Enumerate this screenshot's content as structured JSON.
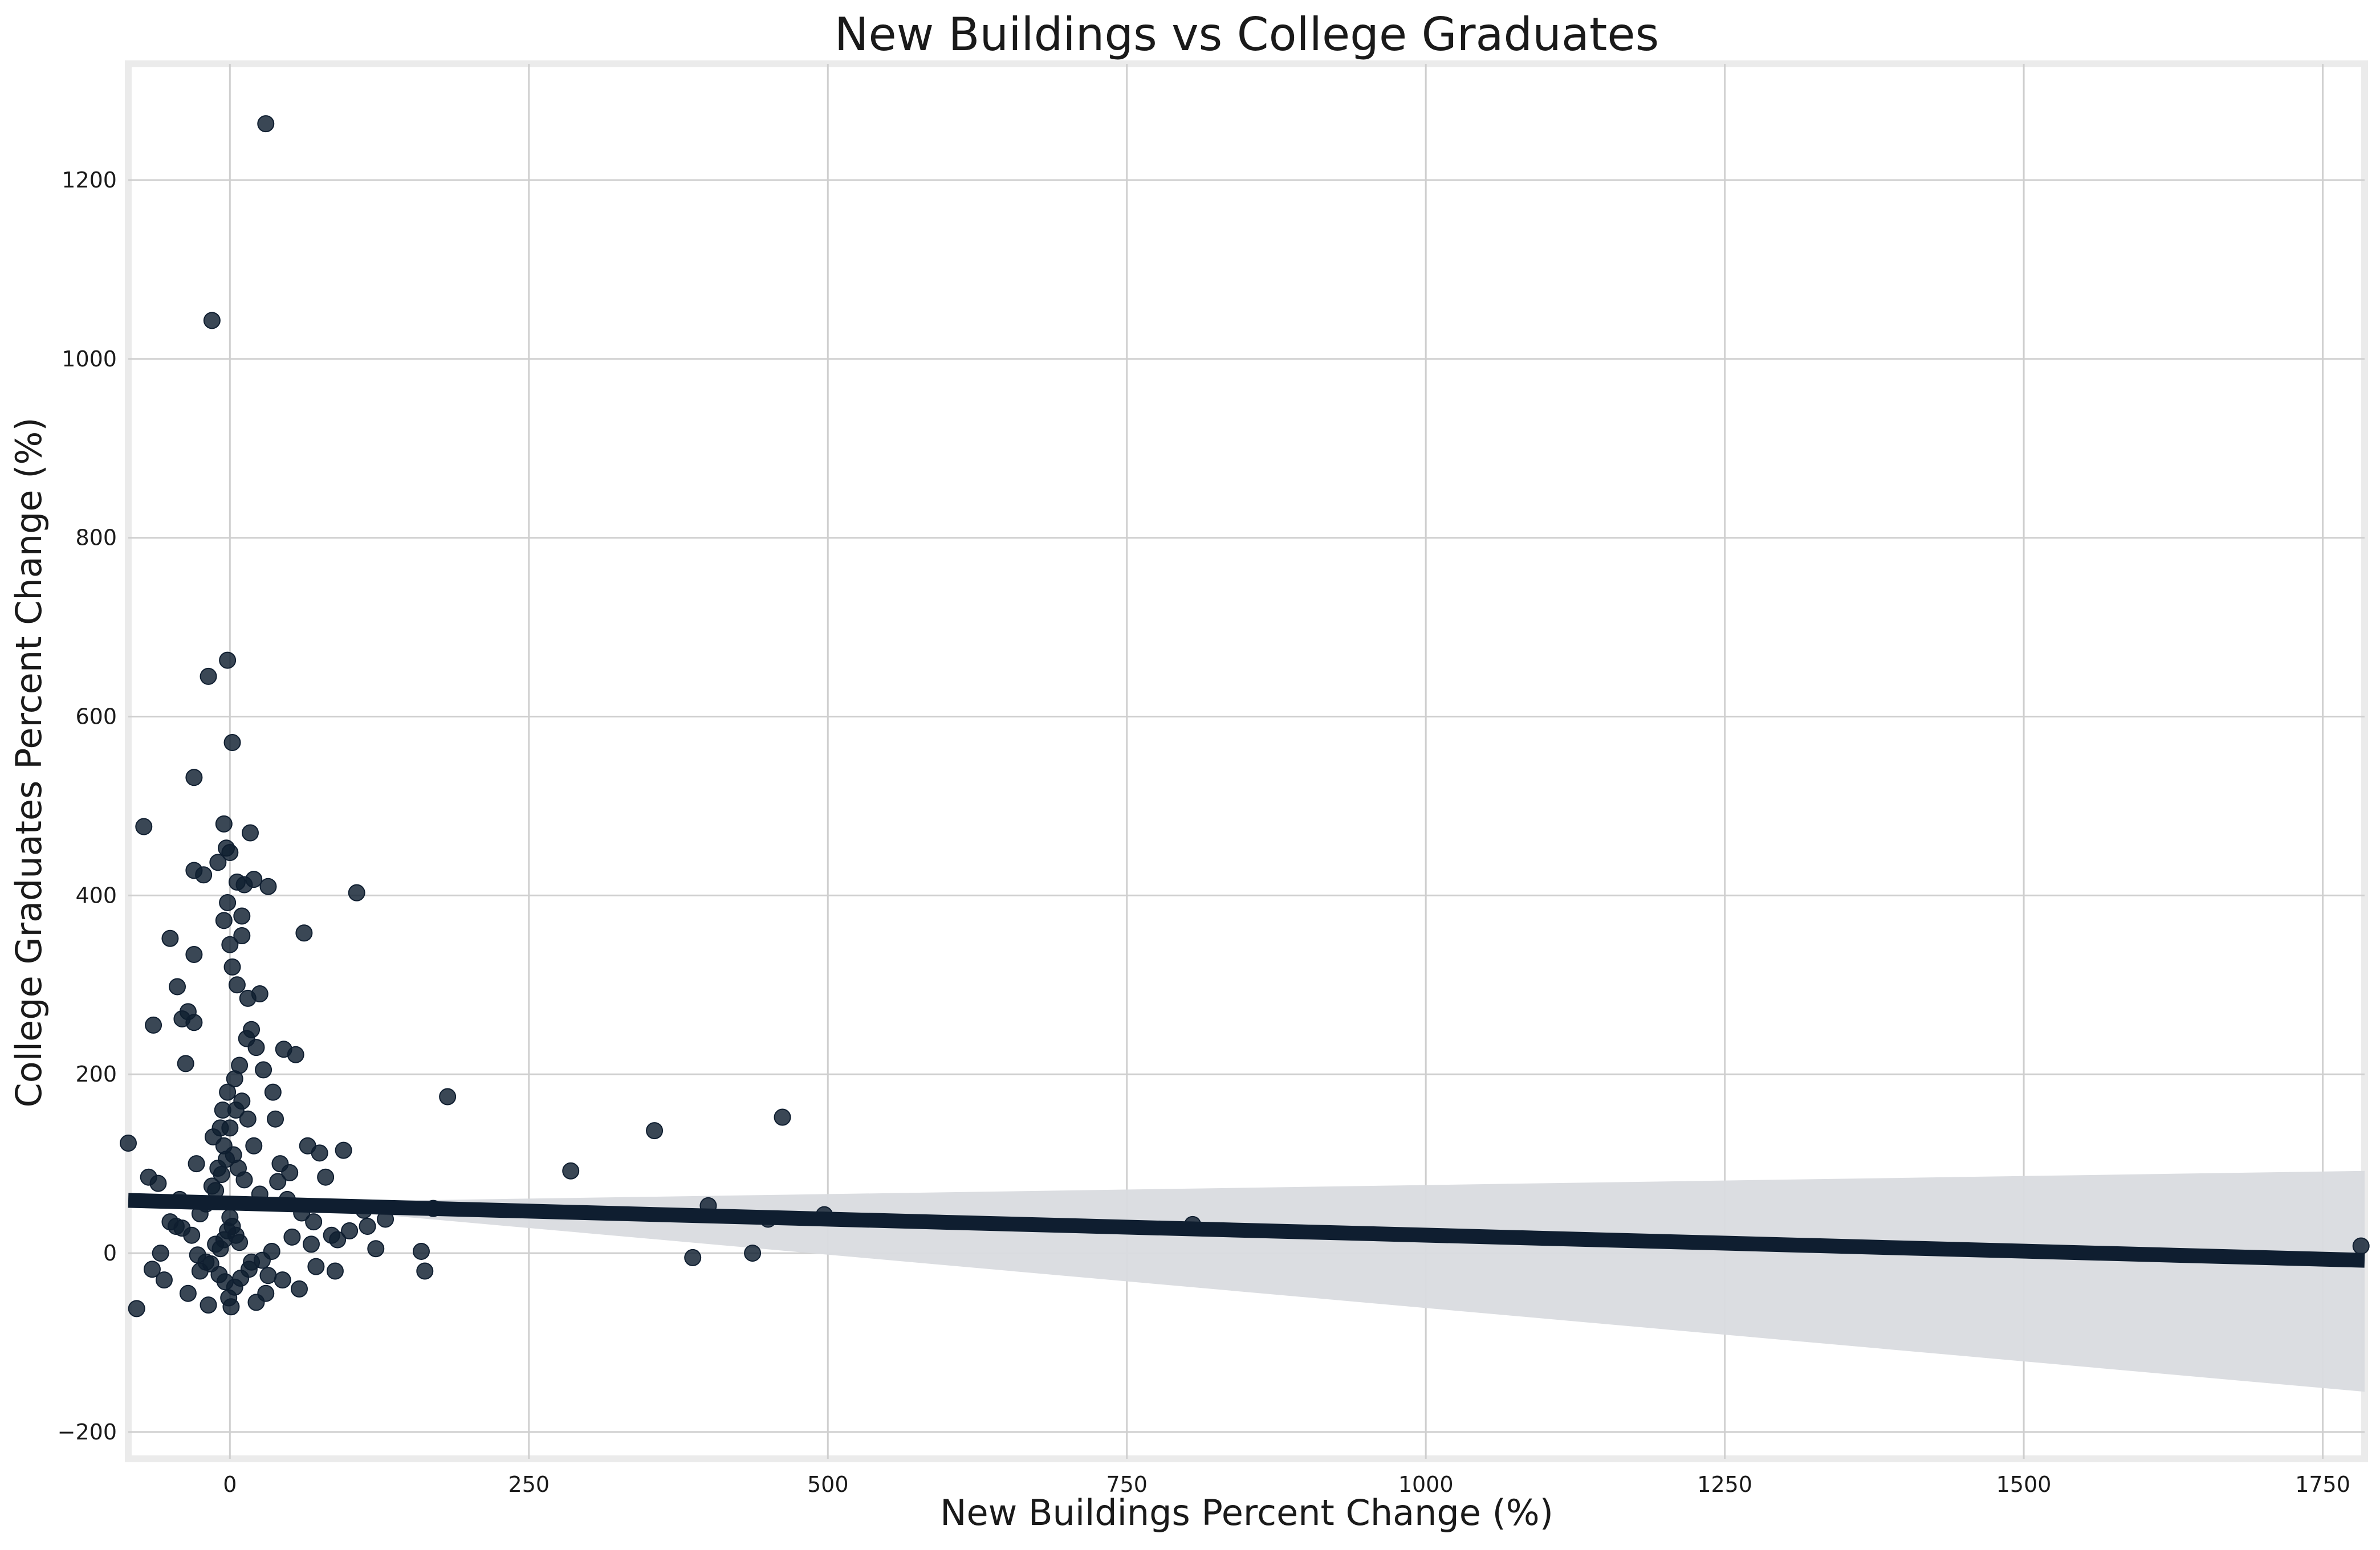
{
  "chart_data": {
    "type": "scatter",
    "title": "New Buildings vs College Graduates",
    "xlabel": "New Buildings Percent Change (%)",
    "ylabel": "College Graduates Percent Change (%)",
    "xlim": [
      -85,
      1785
    ],
    "ylim": [
      -230,
      1330
    ],
    "xticks": [
      0,
      250,
      500,
      750,
      1000,
      1250,
      1500,
      1750
    ],
    "yticks": [
      -200,
      0,
      200,
      400,
      600,
      800,
      1000,
      1200
    ],
    "xtick_labels": [
      "0",
      "250",
      "500",
      "750",
      "1000",
      "1250",
      "1500",
      "1750"
    ],
    "ytick_labels": [
      "−200",
      "0",
      "200",
      "400",
      "600",
      "800",
      "1000",
      "1200"
    ],
    "grid": true,
    "marker_color": "#0f1e30",
    "regression_line": {
      "x": [
        -85,
        1785
      ],
      "y": [
        59,
        -8
      ],
      "color": "#0f1e30"
    },
    "confidence_band": {
      "x": [
        -85,
        100,
        1785
      ],
      "upper": [
        64,
        58,
        92
      ],
      "lower": [
        54,
        46,
        -155
      ],
      "color": "#d9dbdf"
    },
    "points": {
      "x": [
        30,
        -15,
        -2,
        -18,
        2,
        -30,
        -72,
        -5,
        -3,
        0,
        -30,
        17,
        -10,
        -22,
        20,
        6,
        12,
        32,
        -2,
        106,
        -50,
        62,
        -5,
        10,
        10,
        0,
        -30,
        2,
        -44,
        25,
        6,
        15,
        -35,
        -40,
        -30,
        -64,
        45,
        55,
        182,
        355,
        462,
        285,
        -85,
        -37,
        -68,
        -60,
        400,
        497,
        450,
        805,
        160,
        163,
        387,
        437,
        1782,
        170,
        112,
        95,
        65,
        75,
        80,
        122,
        130,
        -45,
        -32,
        -12,
        -20,
        -25,
        -55,
        -78,
        -65,
        -58,
        -50,
        -42,
        50,
        42,
        38,
        36,
        28,
        22,
        18,
        14,
        8,
        4,
        -2,
        -6,
        -8,
        -14,
        -28,
        40,
        48,
        60,
        70,
        85,
        90,
        100,
        115,
        -10,
        -5,
        0,
        5,
        10,
        15,
        20,
        -15,
        -20,
        3,
        -3,
        7,
        -7,
        12,
        -12,
        25,
        -25,
        0,
        2,
        -2,
        5,
        -5,
        8,
        -8,
        18,
        32,
        44,
        58,
        72,
        88,
        30,
        22,
        -18,
        -35,
        1,
        -1,
        4,
        -4,
        9,
        -9,
        16,
        -16,
        27,
        -27,
        35,
        -40,
        52,
        68
      ],
      "y": [
        1263,
        1043,
        663,
        645,
        571,
        532,
        477,
        480,
        453,
        448,
        428,
        470,
        437,
        423,
        418,
        415,
        412,
        410,
        392,
        403,
        352,
        358,
        372,
        377,
        355,
        345,
        334,
        320,
        298,
        290,
        300,
        285,
        270,
        262,
        258,
        255,
        228,
        222,
        175,
        137,
        152,
        92,
        123,
        212,
        85,
        78,
        53,
        43,
        38,
        32,
        2,
        -20,
        -5,
        0,
        8,
        50,
        48,
        115,
        120,
        112,
        85,
        5,
        38,
        30,
        20,
        10,
        -10,
        -20,
        -30,
        -62,
        -18,
        0,
        35,
        60,
        90,
        100,
        150,
        180,
        205,
        230,
        250,
        240,
        210,
        195,
        180,
        160,
        140,
        130,
        100,
        80,
        60,
        45,
        35,
        20,
        15,
        25,
        30,
        95,
        120,
        140,
        160,
        170,
        150,
        120,
        75,
        55,
        110,
        105,
        95,
        88,
        82,
        70,
        66,
        44,
        40,
        30,
        25,
        20,
        15,
        12,
        5,
        -10,
        -25,
        -30,
        -40,
        -15,
        -20,
        -45,
        -55,
        -58,
        -45,
        -60,
        -50,
        -38,
        -32,
        -28,
        -24,
        -18,
        -12,
        -8,
        -2,
        2,
        28,
        18,
        10
      ]
    }
  }
}
